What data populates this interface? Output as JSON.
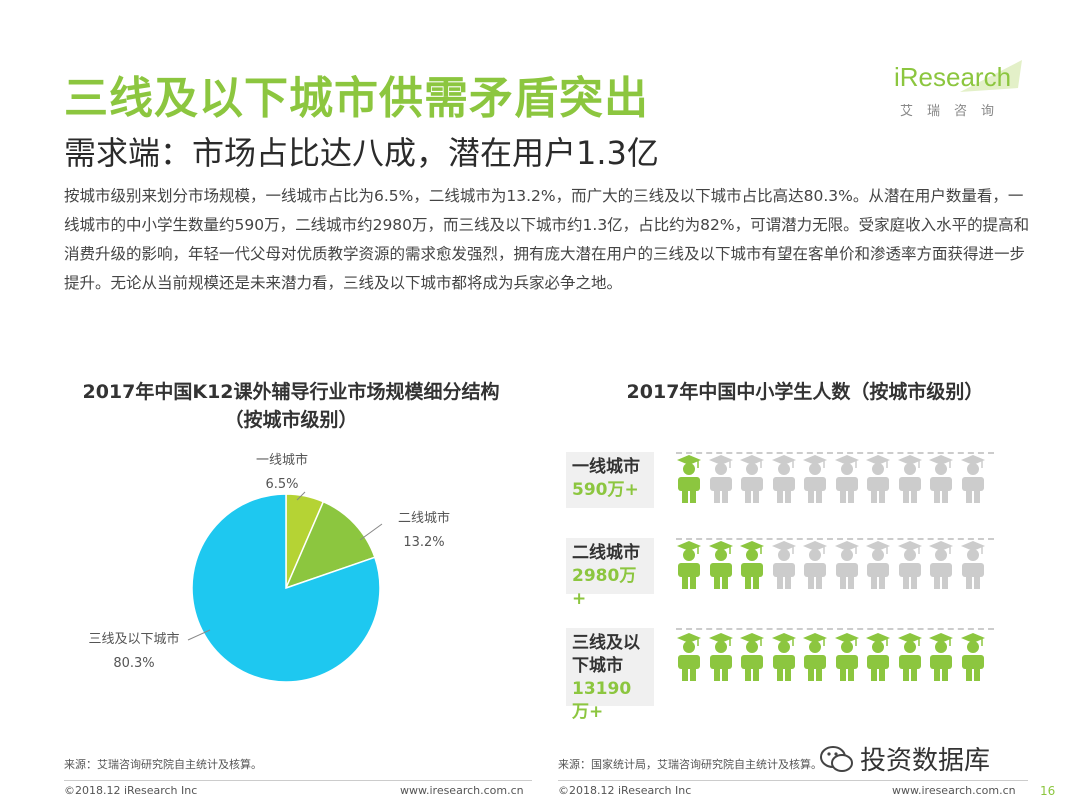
{
  "header": {
    "title": "三线及以下城市供需矛盾突出",
    "subtitle": "需求端：市场占比达八成，潜在用户1.3亿",
    "logo_text": "iResearch",
    "logo_cn": "艾瑞咨询"
  },
  "paragraph": "按城市级别来划分市场规模，一线城市占比为6.5%，二线城市为13.2%，而广大的三线及以下城市占比高达80.3%。从潜在用户数量看，一线城市的中小学生数量约590万，二线城市约2980万，而三线及以下城市约1.3亿，占比约为82%，可谓潜力无限。受家庭收入水平的提高和消费升级的影响，年轻一代父母对优质教学资源的需求愈发强烈，拥有庞大潜在用户的三线及以下城市有望在客单价和渗透率方面获得进一步提升。无论从当前规模还是未来潜力看，三线及以下城市都将成为兵家必争之地。",
  "chart_data": [
    {
      "type": "pie",
      "title_line1": "2017年中国K12课外辅导行业市场规模细分结构",
      "title_line2": "（按城市级别）",
      "slices": [
        {
          "label": "一线城市",
          "value": 6.5,
          "display": "6.5%",
          "color": "#b5d334"
        },
        {
          "label": "二线城市",
          "value": 13.2,
          "display": "13.2%",
          "color": "#8cc63f"
        },
        {
          "label": "三线及以下城市",
          "value": 80.3,
          "display": "80.3%",
          "color": "#1ec8f0"
        }
      ]
    },
    {
      "type": "pictogram",
      "title": "2017年中国中小学生人数（按城市级别）",
      "total_icons": 10,
      "filled_color": "#8cc63f",
      "empty_color": "#cccccc",
      "rows": [
        {
          "label": "一线城市",
          "value_text": "590万+",
          "filled": 1
        },
        {
          "label": "二线城市",
          "value_text": "2980万+",
          "filled": 3
        },
        {
          "label": "三线及以下城市",
          "label_line1": "三线及以",
          "label_line2": "下城市",
          "value_text": "13190万+",
          "filled": 10
        }
      ]
    }
  ],
  "footer": {
    "source_left": "来源：艾瑞咨询研究院自主统计及核算。",
    "source_right": "来源：国家统计局，艾瑞咨询研究院自主统计及核算。",
    "copyright_left": "©2018.12 iResearch Inc",
    "url_left": "www.iresearch.com.cn",
    "copyright_right": "©2018.12 iResearch Inc",
    "url_right": "www.iresearch.com.cn",
    "watermark": "投资数据库",
    "page_number": "16"
  }
}
